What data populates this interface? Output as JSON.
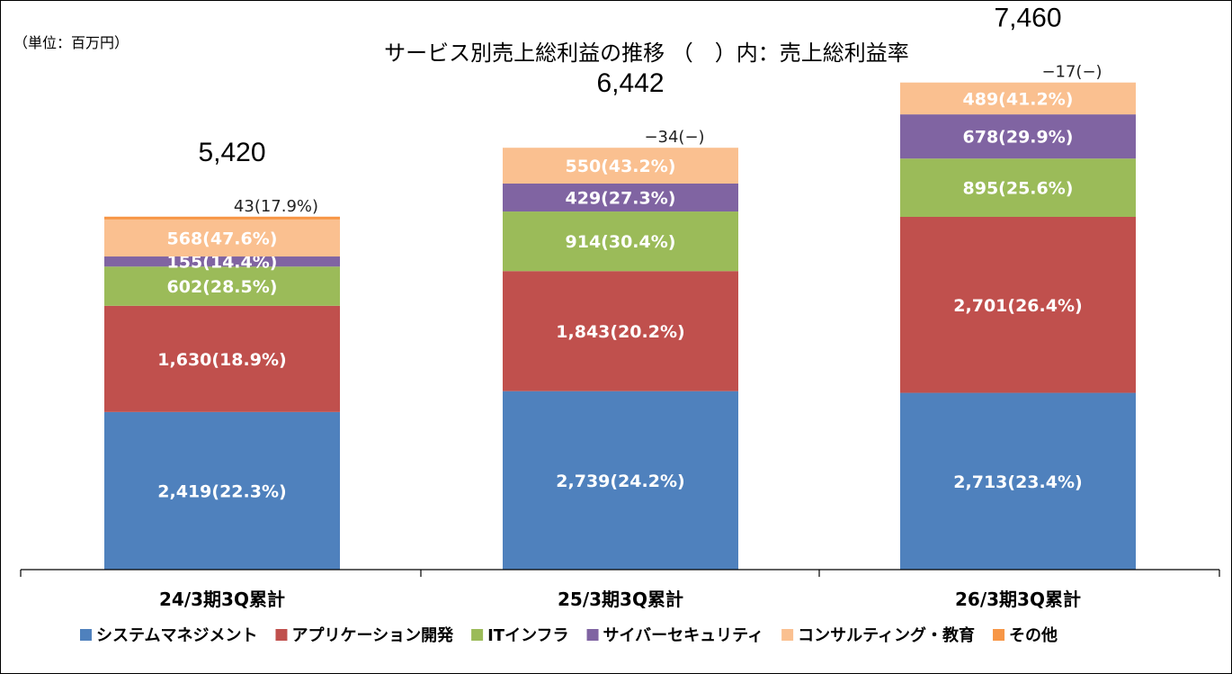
{
  "chart_data": {
    "type": "bar",
    "stacked": true,
    "unit_label": "（単位：百万円）",
    "title": "サービス別売上総利益の推移 （　）内：売上総利益率",
    "categories": [
      "24/3期3Q累計",
      "25/3期3Q累計",
      "26/3期3Q累計"
    ],
    "totals": [
      "5,420",
      "6,442",
      "7,460"
    ],
    "ylim": [
      -100,
      7900
    ],
    "grid": false,
    "legend_position": "bottom",
    "series": [
      {
        "name": "システムマネジメント",
        "color": "#4f81bd",
        "values": [
          2419,
          2739,
          2713
        ],
        "labels": [
          "2,419(22.3%)",
          "2,739(24.2%)",
          "2,713(23.4%)"
        ]
      },
      {
        "name": "アプリケーション開発",
        "color": "#c0504d",
        "values": [
          1630,
          1843,
          2701
        ],
        "labels": [
          "1,630(18.9%)",
          "1,843(20.2%)",
          "2,701(26.4%)"
        ]
      },
      {
        "name": "ITインフラ",
        "color": "#9bbb59",
        "values": [
          602,
          914,
          895
        ],
        "labels": [
          "602(28.5%)",
          "914(30.4%)",
          "895(25.6%)"
        ]
      },
      {
        "name": "サイバーセキュリティ",
        "color": "#8064a2",
        "values": [
          155,
          429,
          678
        ],
        "labels": [
          "155(14.4%)",
          "429(27.3%)",
          "678(29.9%)"
        ]
      },
      {
        "name": "コンサルティング・教育",
        "color": "#fac090",
        "values": [
          568,
          550,
          489
        ],
        "labels": [
          "568(47.6%)",
          "550(43.2%)",
          "489(41.2%)"
        ]
      },
      {
        "name": "その他",
        "color": "#f79646",
        "values": [
          43,
          -34,
          -17
        ],
        "labels": [
          "43(17.9%)",
          "−34(−)",
          "−17(−)"
        ]
      }
    ]
  }
}
